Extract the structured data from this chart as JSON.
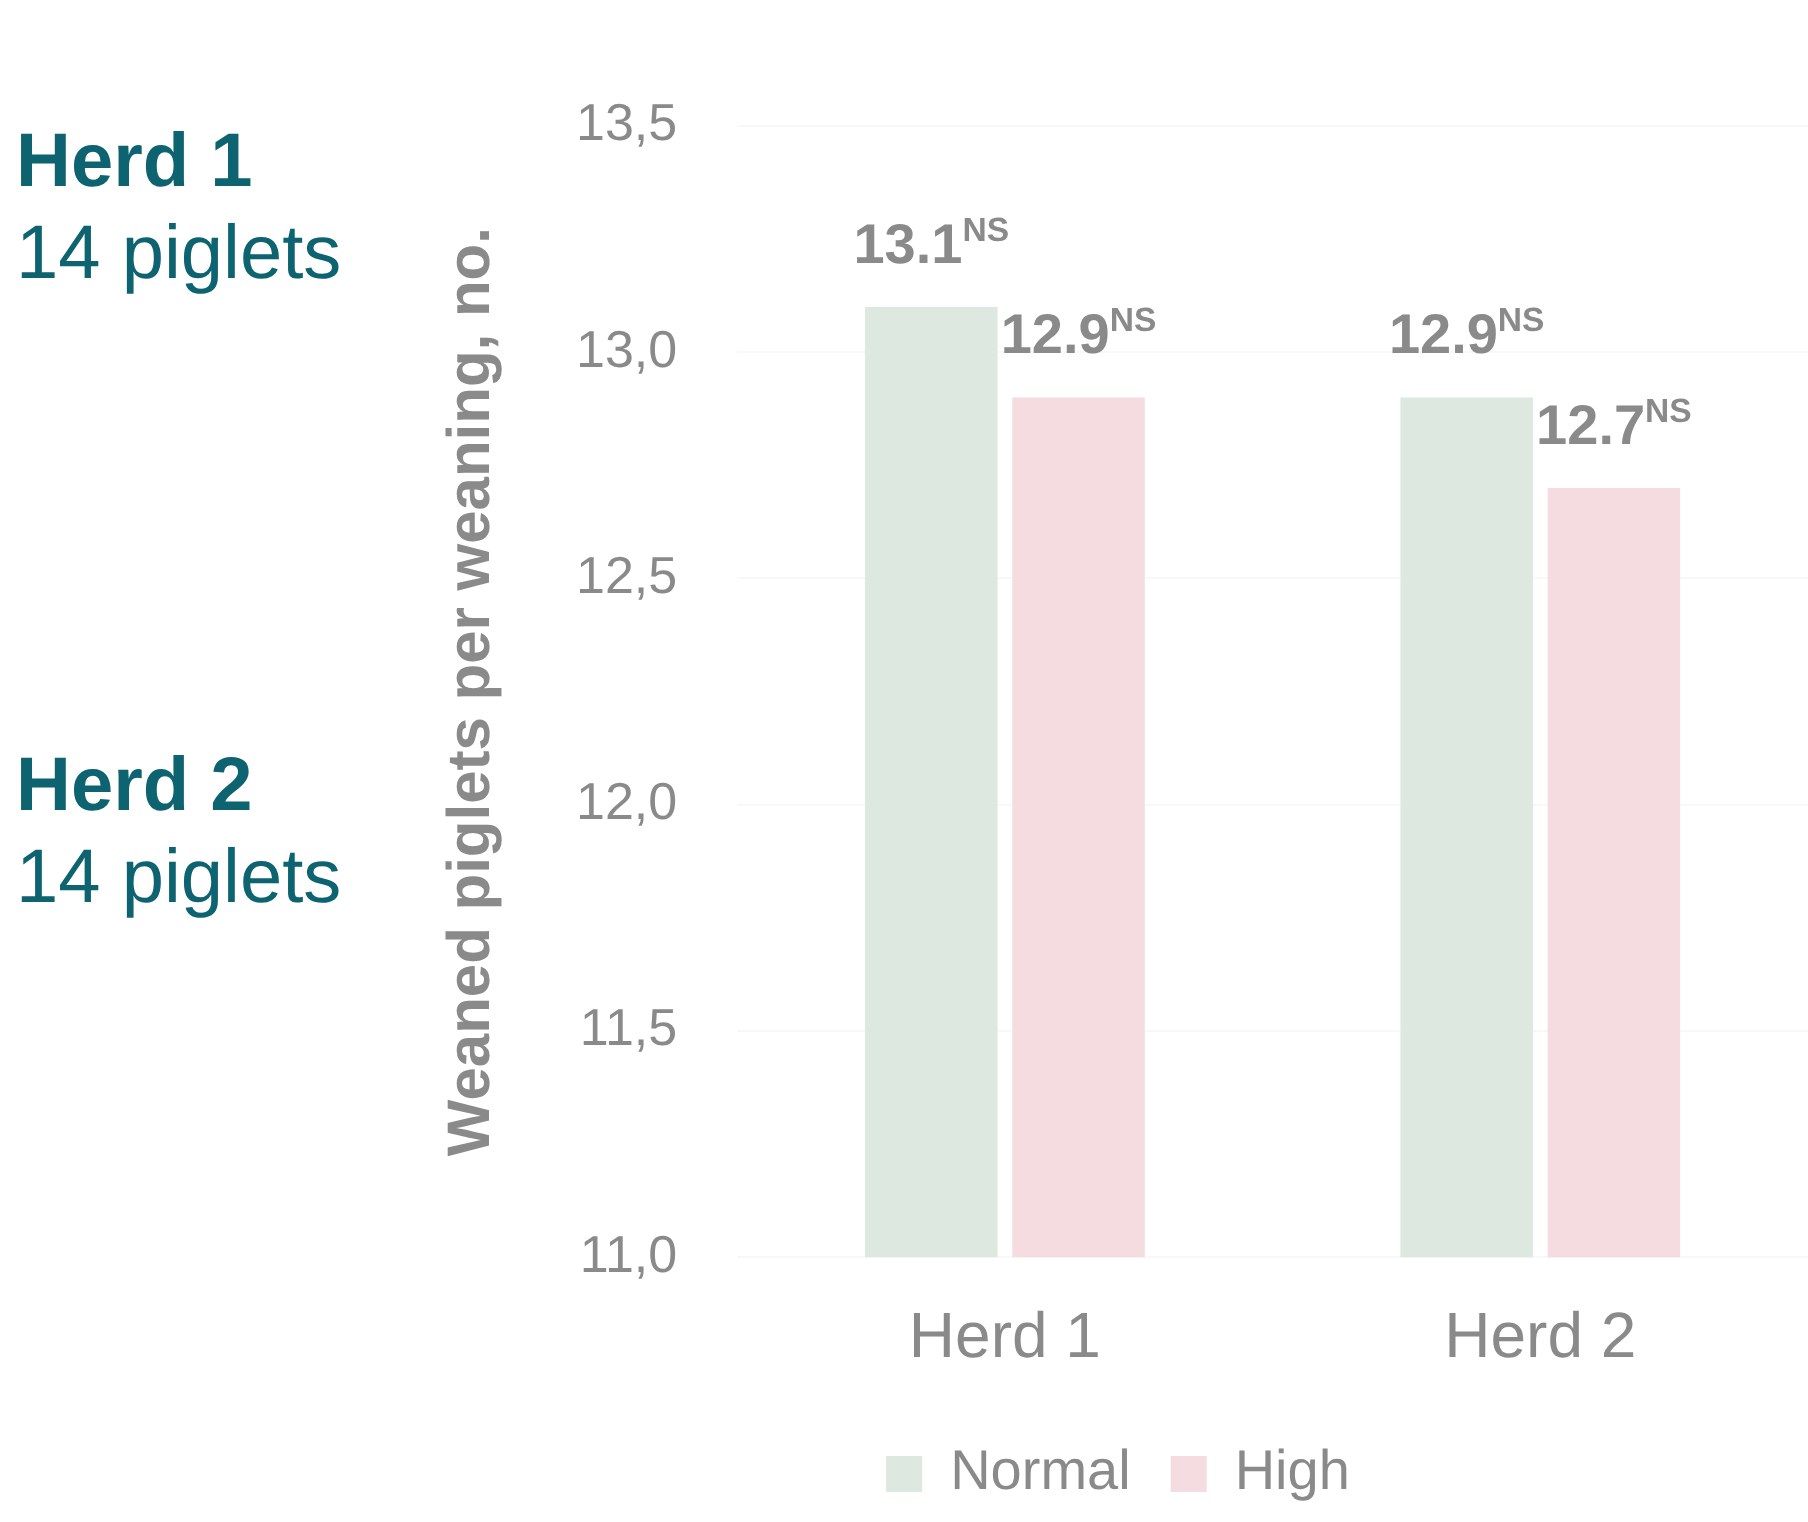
{
  "chart_data": {
    "type": "bar",
    "ylabel": "Weaned piglets per weaning, no.",
    "categories": [
      "Herd 1",
      "Herd 2"
    ],
    "series": [
      {
        "name": "Normal",
        "color": "#dce8e0",
        "values": [
          13.1,
          12.9
        ],
        "value_labels": [
          "13.1$^{NS}$",
          "12.9$^{NS}$"
        ]
      },
      {
        "name": "High",
        "color": "#f5dce0",
        "values": [
          12.9,
          12.7
        ],
        "value_labels": [
          "12.9$^{NS}$",
          "12.7$^{NS}$"
        ]
      }
    ],
    "ylim": [
      11,
      13.5
    ],
    "yticks": [
      {
        "value": 11,
        "label": "11,0"
      },
      {
        "value": 11.5,
        "label": "11,5"
      },
      {
        "value": 12,
        "label": "12,0"
      },
      {
        "value": 12.5,
        "label": "12,5"
      },
      {
        "value": 13,
        "label": "13,0"
      },
      {
        "value": 13.5,
        "label": "13,5"
      }
    ],
    "grid": "y",
    "legend": "bottom",
    "annotations": [
      "Herd 1",
      "14 piglets",
      "Herd 2",
      "14 piglets"
    ]
  }
}
